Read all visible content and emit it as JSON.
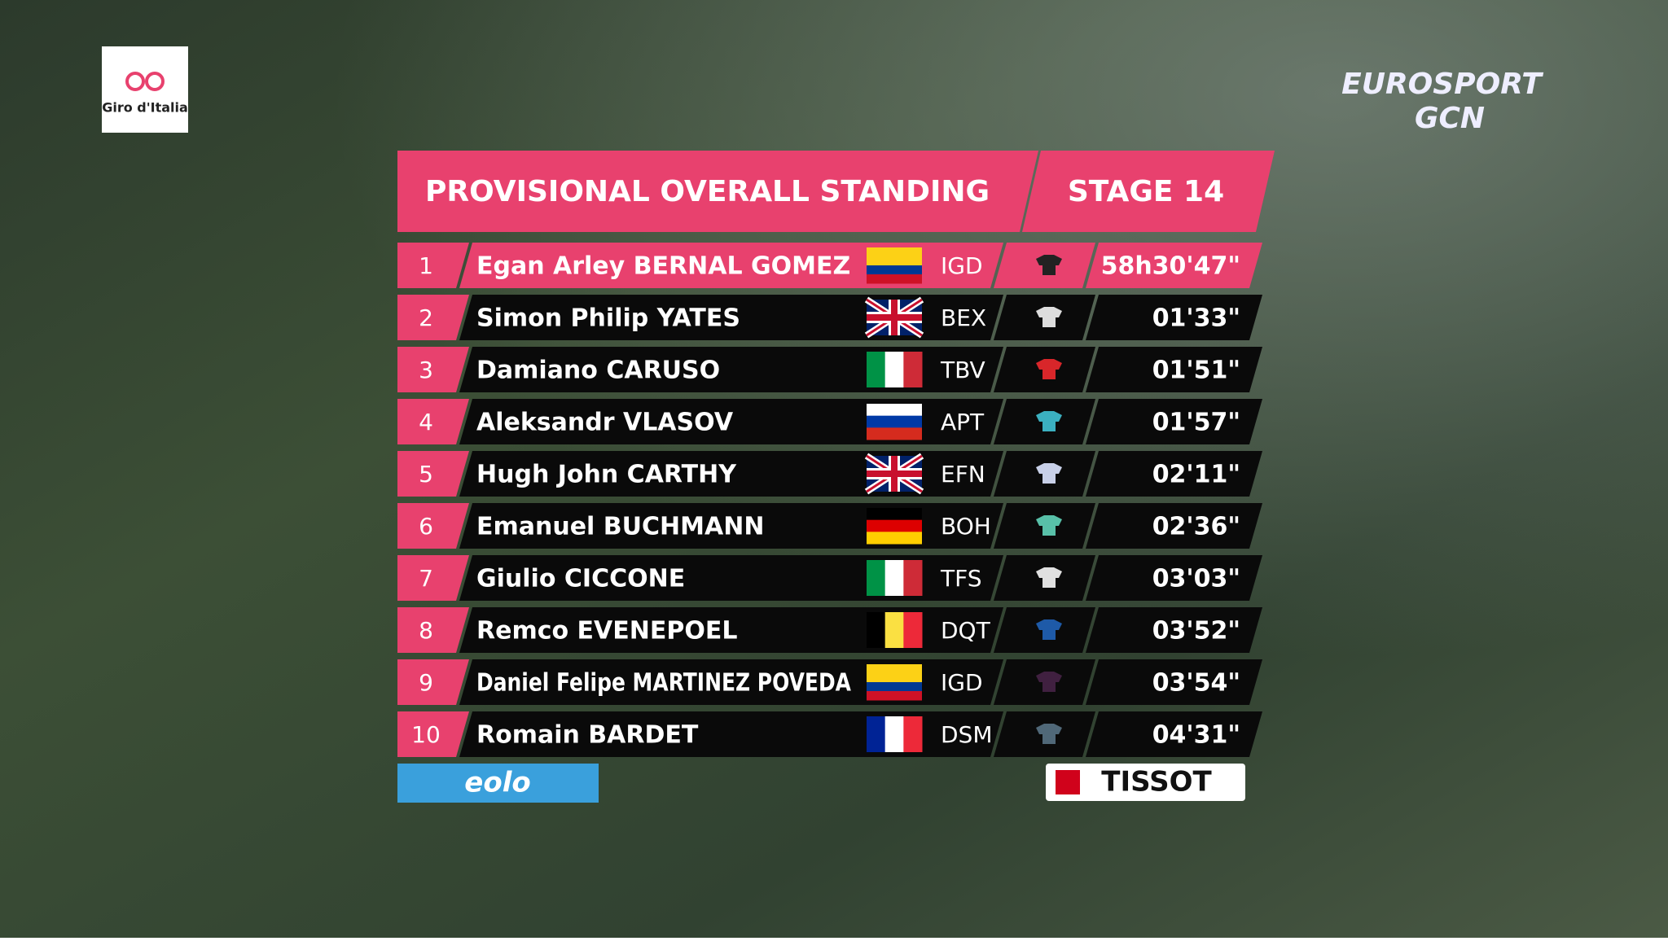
{
  "broadcast": {
    "event_logo": "Giro d'Italia",
    "channel_logo": [
      "EUROSPORT",
      "GCN"
    ]
  },
  "header": {
    "title": "PROVISIONAL OVERALL STANDING",
    "stage": "STAGE 14"
  },
  "table": {
    "rows": [
      [
        "1",
        "Egan Arley BERNAL GOMEZ",
        "IGD",
        "58h30'47\""
      ],
      [
        "2",
        "Simon Philip YATES",
        "BEX",
        "01'33\""
      ],
      [
        "3",
        "Damiano CARUSO",
        "TBV",
        "01'51\""
      ],
      [
        "4",
        "Aleksandr VLASOV",
        "APT",
        "01'57\""
      ],
      [
        "5",
        "Hugh John CARTHY",
        "EFN",
        "02'11\""
      ],
      [
        "6",
        "Emanuel BUCHMANN",
        "BOH",
        "02'36\""
      ],
      [
        "7",
        "Giulio CICCONE",
        "TFS",
        "03'03\""
      ],
      [
        "8",
        "Remco EVENEPOEL",
        "DQT",
        "03'52\""
      ],
      [
        "9",
        "Daniel Felipe MARTINEZ POVEDA",
        "IGD",
        "03'54\""
      ],
      [
        "10",
        "Romain BARDET",
        "DSM",
        "04'31\""
      ]
    ]
  },
  "sponsors": [
    "eolo",
    "TISSOT"
  ]
}
